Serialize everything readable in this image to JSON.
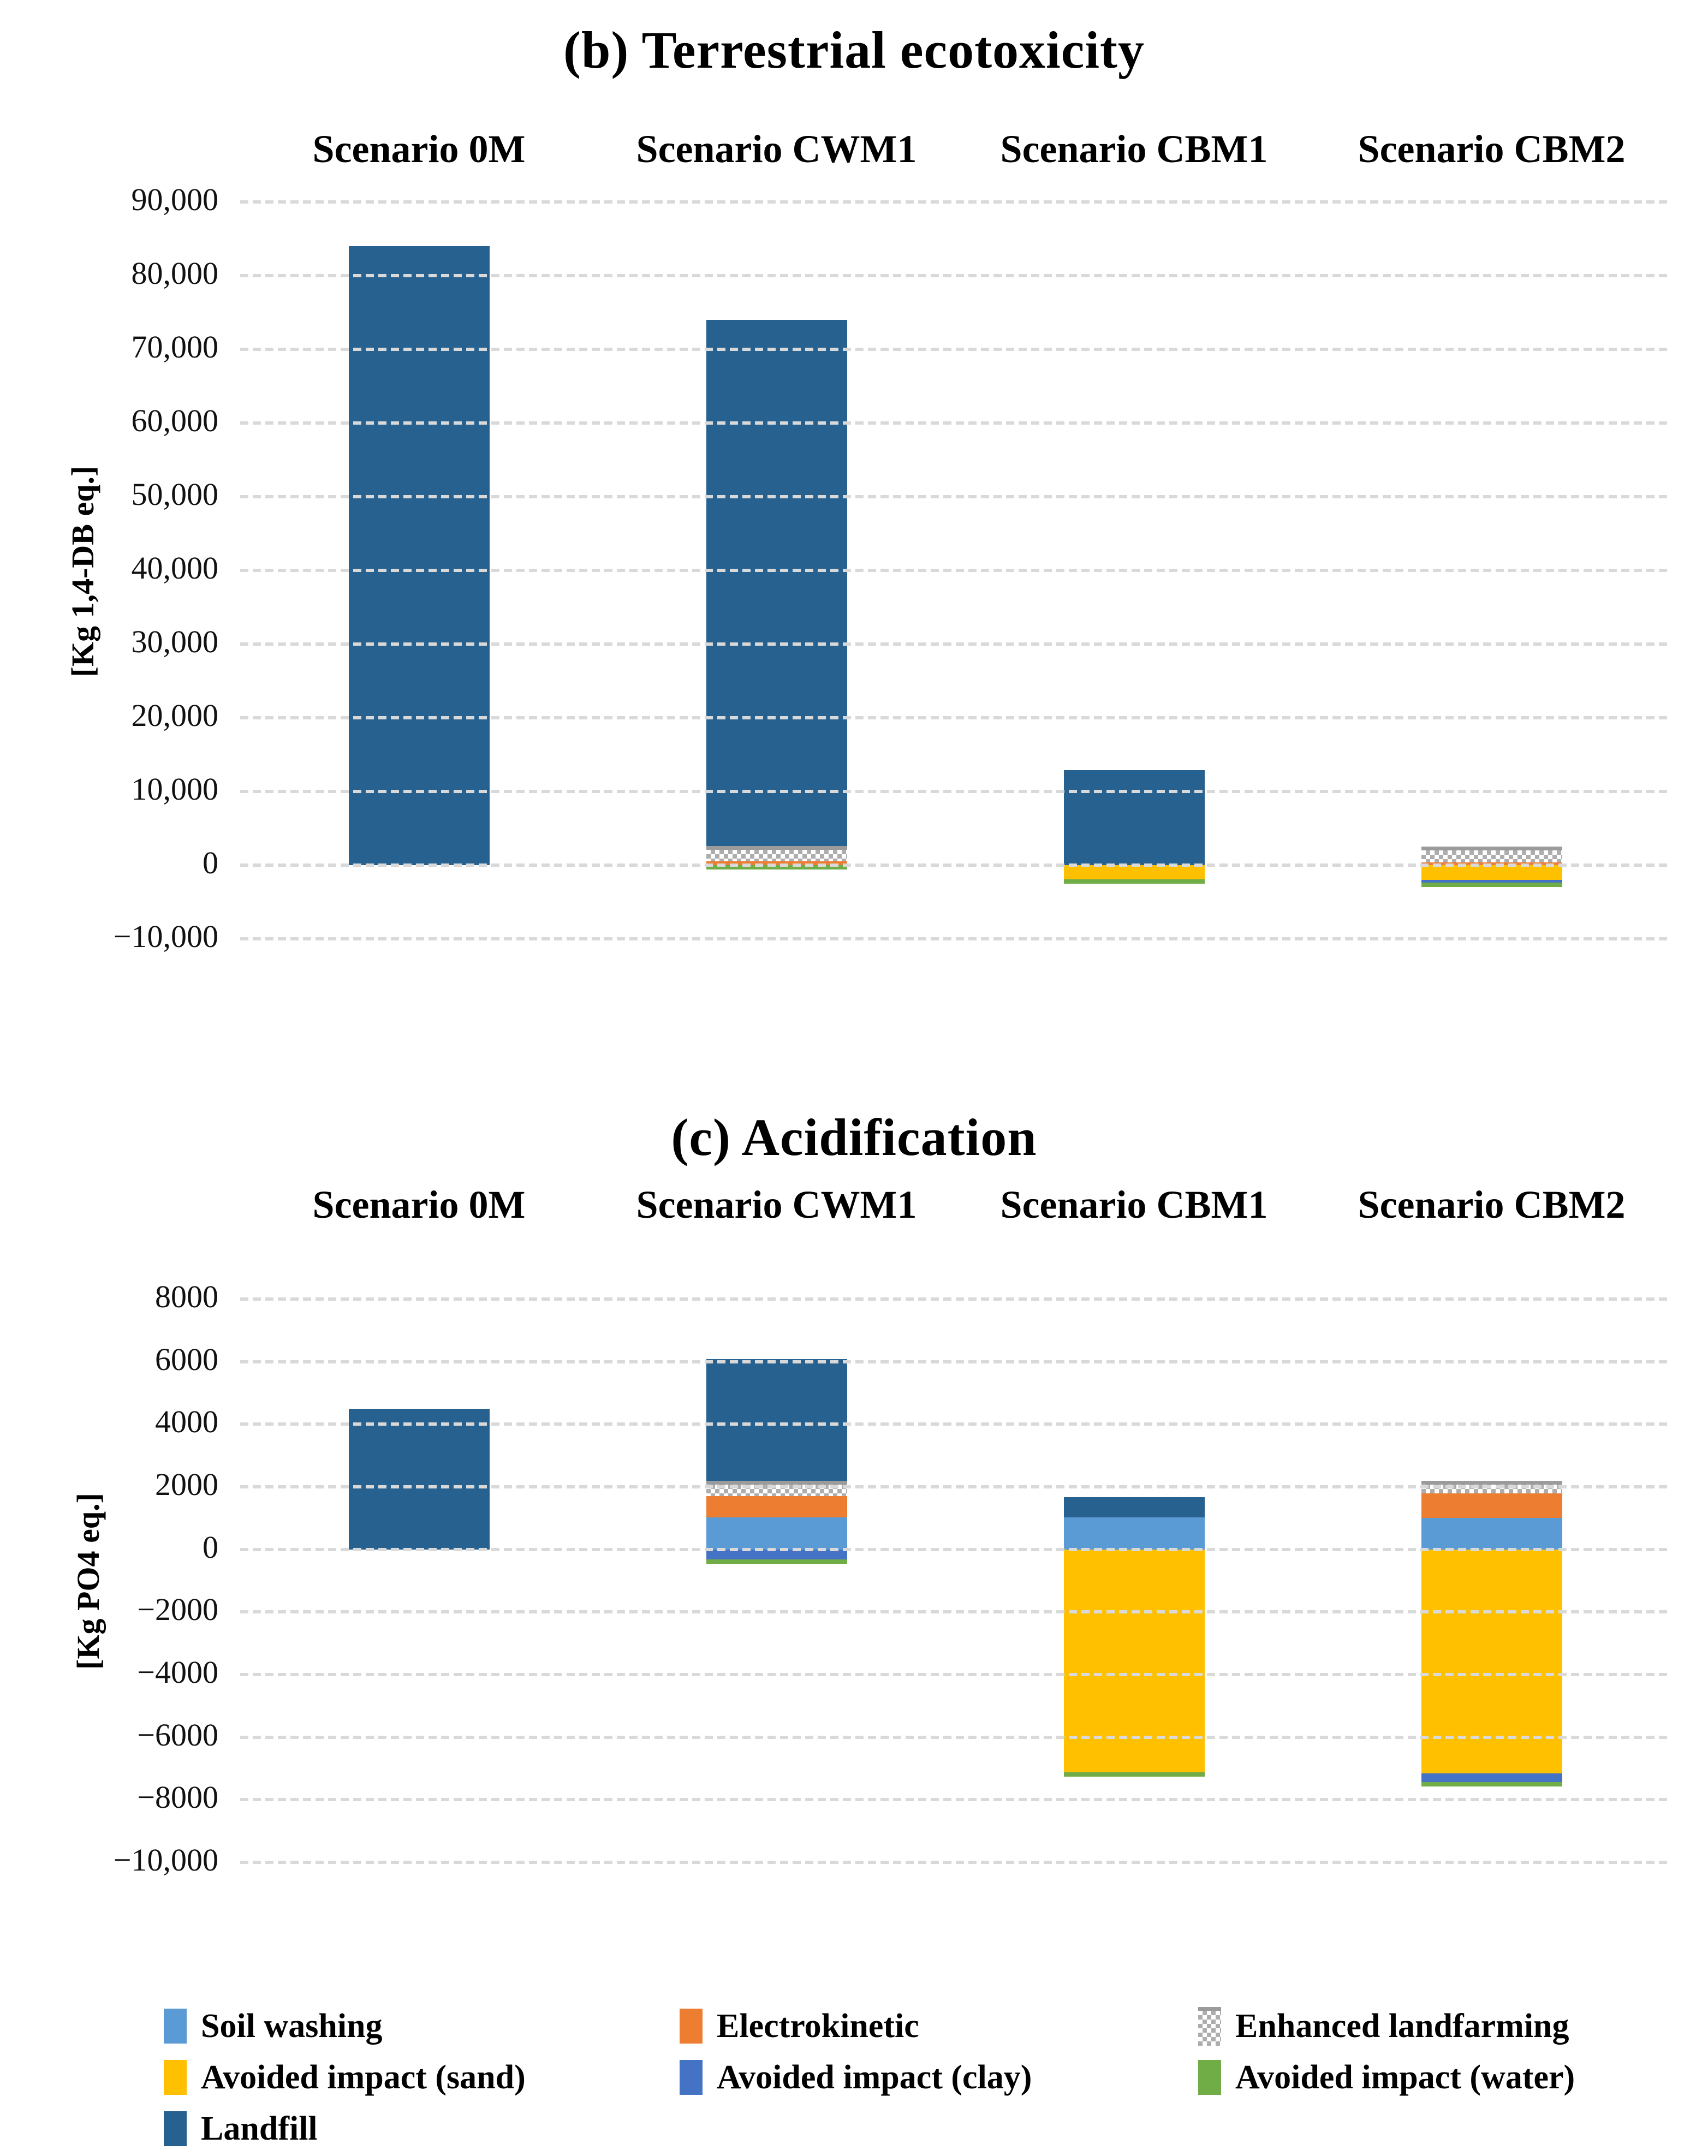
{
  "legend": {
    "items": [
      {
        "label": "Soil washing",
        "color": "#5B9BD5",
        "hatch": false
      },
      {
        "label": "Electrokinetic",
        "color": "#ED7D31",
        "hatch": false
      },
      {
        "label": "Enhanced landfarming",
        "color": "#B5B5B5",
        "hatch": true
      },
      {
        "label": "Avoided impact (sand)",
        "color": "#FFC000",
        "hatch": false
      },
      {
        "label": "Avoided impact (clay)",
        "color": "#4472C4",
        "hatch": false
      },
      {
        "label": "Avoided impact (water)",
        "color": "#70AD47",
        "hatch": false
      },
      {
        "label": "Landfill",
        "color": "#27618F",
        "hatch": false
      }
    ]
  },
  "chart_data": [
    {
      "type": "bar",
      "subtype": "stacked-column",
      "title": "(b) Terrestrial ecotoxicity",
      "ylabel": "[Kg 1,4-DB eq.]",
      "xlabel": "",
      "grid": "dashed-horizontal",
      "legend_position": "bottom-shared",
      "categories": [
        "Scenario 0M",
        "Scenario CWM1",
        "Scenario CBM1",
        "Scenario CBM2"
      ],
      "ylim": [
        -10000,
        90000
      ],
      "yticks": [
        {
          "v": 90000,
          "label": "90,000"
        },
        {
          "v": 80000,
          "label": "80,000"
        },
        {
          "v": 70000,
          "label": "70,000"
        },
        {
          "v": 60000,
          "label": "60,000"
        },
        {
          "v": 50000,
          "label": "50,000"
        },
        {
          "v": 40000,
          "label": "40,000"
        },
        {
          "v": 30000,
          "label": "30,000"
        },
        {
          "v": 20000,
          "label": "20,000"
        },
        {
          "v": 10000,
          "label": "10,000"
        },
        {
          "v": 0,
          "label": "0"
        },
        {
          "v": -10000,
          "label": "−10,000"
        }
      ],
      "series": [
        {
          "name": "Soil washing",
          "color": "#5B9BD5",
          "hatch": false,
          "values": [
            0,
            0,
            0,
            0
          ]
        },
        {
          "name": "Electrokinetic",
          "color": "#ED7D31",
          "hatch": false,
          "values": [
            0,
            550,
            0,
            400
          ]
        },
        {
          "name": "Enhanced landfarming",
          "color": "#B5B5B5",
          "hatch": true,
          "values": [
            0,
            2050,
            0,
            2150
          ]
        },
        {
          "name": "Avoided impact (sand)",
          "color": "#FFC000",
          "hatch": false,
          "values": [
            0,
            0,
            -1900,
            -2000
          ]
        },
        {
          "name": "Avoided impact (clay)",
          "color": "#4472C4",
          "hatch": false,
          "values": [
            0,
            0,
            0,
            -350
          ]
        },
        {
          "name": "Avoided impact (water)",
          "color": "#70AD47",
          "hatch": false,
          "values": [
            0,
            -600,
            -350,
            -330
          ]
        },
        {
          "name": "Landfill",
          "color": "#27618F",
          "hatch": false,
          "values": [
            84000,
            71400,
            12900,
            0
          ]
        }
      ]
    },
    {
      "type": "bar",
      "subtype": "stacked-column",
      "title": "(c) Acidification",
      "ylabel": "[Kg PO4 eq.]",
      "xlabel": "",
      "grid": "dashed-horizontal",
      "legend_position": "bottom-shared",
      "categories": [
        "Scenario 0M",
        "Scenario CWM1",
        "Scenario CBM1",
        "Scenario CBM2"
      ],
      "ylim": [
        -10000,
        8000
      ],
      "yticks": [
        {
          "v": 8000,
          "label": "8000"
        },
        {
          "v": 6000,
          "label": "6000"
        },
        {
          "v": 4000,
          "label": "4000"
        },
        {
          "v": 2000,
          "label": "2000"
        },
        {
          "v": 0,
          "label": "0"
        },
        {
          "v": -2000,
          "label": "−2000"
        },
        {
          "v": -4000,
          "label": "−4000"
        },
        {
          "v": -6000,
          "label": "−6000"
        },
        {
          "v": -8000,
          "label": "−8000"
        },
        {
          "v": -10000,
          "label": "−10,000"
        }
      ],
      "series": [
        {
          "name": "Soil washing",
          "color": "#5B9BD5",
          "hatch": false,
          "values": [
            0,
            1030,
            1030,
            1000
          ]
        },
        {
          "name": "Electrokinetic",
          "color": "#ED7D31",
          "hatch": false,
          "values": [
            0,
            670,
            0,
            785
          ]
        },
        {
          "name": "Enhanced landfarming",
          "color": "#B5B5B5",
          "hatch": true,
          "values": [
            0,
            500,
            0,
            415
          ]
        },
        {
          "name": "Avoided impact (sand)",
          "color": "#FFC000",
          "hatch": false,
          "values": [
            0,
            0,
            -7130,
            -7160
          ]
        },
        {
          "name": "Avoided impact (clay)",
          "color": "#4472C4",
          "hatch": false,
          "values": [
            0,
            -320,
            0,
            -280
          ]
        },
        {
          "name": "Avoided impact (water)",
          "color": "#70AD47",
          "hatch": false,
          "values": [
            0,
            -60,
            -100,
            -80
          ]
        },
        {
          "name": "Landfill",
          "color": "#27618F",
          "hatch": false,
          "values": [
            4500,
            3880,
            640,
            0
          ]
        }
      ]
    }
  ]
}
